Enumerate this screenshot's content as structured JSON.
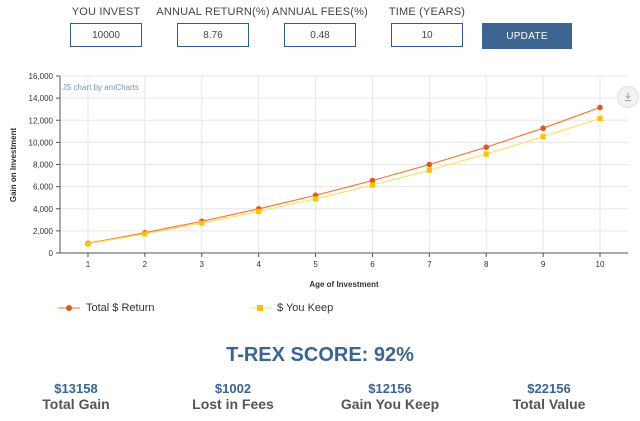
{
  "controls": {
    "invest": {
      "label": "YOU INVEST",
      "value": "10000"
    },
    "annual_return": {
      "label": "ANNUAL RETURN(%)",
      "value": "8.76"
    },
    "annual_fees": {
      "label": "ANNUAL FEES(%)",
      "value": "0.48"
    },
    "time": {
      "label": "TIME (YEARS)",
      "value": "10"
    },
    "update_label": "UPDATE"
  },
  "chart_credit": "JS chart by amCharts",
  "download_icon": "download-icon",
  "chart_data": {
    "type": "line",
    "xlabel": "Age of Investment",
    "ylabel": "Gain on Investment",
    "x": [
      1,
      2,
      3,
      4,
      5,
      6,
      7,
      8,
      9,
      10
    ],
    "ylim": [
      0,
      16000
    ],
    "yticks": [
      0,
      2000,
      4000,
      6000,
      8000,
      10000,
      12000,
      14000,
      16000
    ],
    "ytick_labels": [
      "0",
      "2,000",
      "4,000",
      "6,000",
      "8,000",
      "10,000",
      "12,000",
      "14,000",
      "16,000"
    ],
    "grid": true,
    "series": [
      {
        "name": "Total $ Return",
        "color": "#f77a35",
        "marker_color": "#e8531a",
        "marker": "circle",
        "values": [
          876,
          1829,
          2864,
          3990,
          5214,
          6545,
          7993,
          9568,
          11280,
          13158
        ]
      },
      {
        "name": "$ You Keep",
        "color": "#ffe066",
        "marker_color": "#f7c400",
        "marker": "square",
        "values": [
          828,
          1726,
          2699,
          3754,
          4898,
          6138,
          7483,
          8941,
          10521,
          12156
        ]
      }
    ]
  },
  "score": "T-REX SCORE: 92%",
  "summary": [
    {
      "value": "$13158",
      "label": "Total Gain"
    },
    {
      "value": "$1002",
      "label": "Lost in Fees"
    },
    {
      "value": "$12156",
      "label": "Gain You Keep"
    },
    {
      "value": "$22156",
      "label": "Total Value"
    }
  ]
}
